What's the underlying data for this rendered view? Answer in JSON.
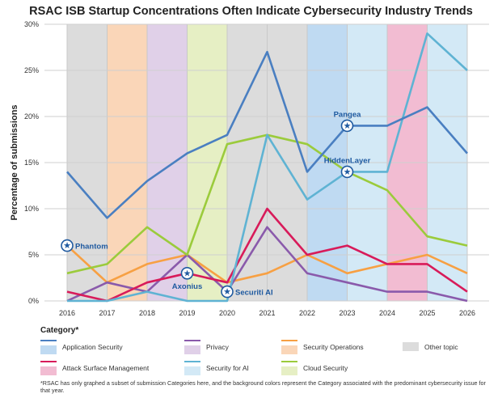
{
  "chart_data": {
    "type": "line",
    "title": "RSAC ISB Startup Concentrations Often Indicate Cybersecurity Industry Trends",
    "ylabel": "Percentage of submissions",
    "xlabel": "",
    "x": [
      2016,
      2017,
      2018,
      2019,
      2020,
      2021,
      2022,
      2023,
      2024,
      2025,
      2026
    ],
    "x_tick_labels": [
      "2016",
      "2017",
      "2018",
      "2019",
      "2020",
      "2021",
      "2022",
      "2023",
      "2024",
      "2025",
      "2026"
    ],
    "ylim": [
      0,
      30
    ],
    "y_ticks": [
      0,
      5,
      10,
      15,
      20,
      25,
      30
    ],
    "y_tick_labels": [
      "0%",
      "5%",
      "10%",
      "15%",
      "20%",
      "25%",
      "30%"
    ],
    "grid": true,
    "series": [
      {
        "name": "Application Security",
        "color": "#4a7fc1",
        "values": [
          14,
          9,
          13,
          16,
          18,
          27,
          14,
          19,
          19,
          21,
          16
        ]
      },
      {
        "name": "Security for AI",
        "color": "#5fb3d3",
        "values": [
          0,
          0,
          1,
          0,
          0,
          18,
          11,
          14,
          14,
          29,
          25
        ]
      },
      {
        "name": "Cloud Security",
        "color": "#9bcb3c",
        "values": [
          3,
          4,
          8,
          5,
          17,
          18,
          17,
          14,
          12,
          7,
          6
        ]
      },
      {
        "name": "Attack Surface Management",
        "color": "#d81b5a",
        "values": [
          1,
          0,
          2,
          3,
          2,
          10,
          5,
          6,
          4,
          4,
          1
        ]
      },
      {
        "name": "Privacy",
        "color": "#8a5aab",
        "values": [
          0,
          2,
          1,
          5,
          1,
          8,
          3,
          2,
          1,
          1,
          0
        ]
      },
      {
        "name": "Security Operations",
        "color": "#f7a043",
        "values": [
          6,
          2,
          4,
          5,
          2,
          3,
          5,
          3,
          4,
          5,
          3
        ]
      }
    ],
    "background_bands": [
      {
        "from": 2016,
        "to": 2017,
        "category": "Other topic"
      },
      {
        "from": 2017,
        "to": 2018,
        "category": "Security Operations"
      },
      {
        "from": 2018,
        "to": 2019,
        "category": "Privacy"
      },
      {
        "from": 2019,
        "to": 2020,
        "category": "Cloud Security"
      },
      {
        "from": 2020,
        "to": 2022,
        "category": "Other topic"
      },
      {
        "from": 2022,
        "to": 2023,
        "category": "Application Security"
      },
      {
        "from": 2023,
        "to": 2024,
        "category": "Security for AI"
      },
      {
        "from": 2024,
        "to": 2025,
        "category": "Attack Surface Management"
      },
      {
        "from": 2025,
        "to": 2026,
        "category": "Security for AI"
      }
    ],
    "annotations": [
      {
        "text": "Phantom",
        "x": 2016,
        "y": 6,
        "side": "right"
      },
      {
        "text": "Axonius",
        "x": 2019,
        "y": 3,
        "side": "below"
      },
      {
        "text": "Securiti AI",
        "x": 2020,
        "y": 1,
        "side": "right"
      },
      {
        "text": "Pangea",
        "x": 2023,
        "y": 19,
        "side": "above"
      },
      {
        "text": "HiddenLayer",
        "x": 2023,
        "y": 14,
        "side": "above"
      }
    ],
    "legend": {
      "title": "Category*",
      "placement": "bottom",
      "items": [
        {
          "label": "Application Security",
          "line": "#4a7fc1",
          "bg": "#bfdaf2"
        },
        {
          "label": "Privacy",
          "line": "#8a5aab",
          "bg": "#e0d0e8"
        },
        {
          "label": "Security Operations",
          "line": "#f7a043",
          "bg": "#fad6b8"
        },
        {
          "label": "Other topic",
          "line": null,
          "bg": "#dcdcdc"
        },
        {
          "label": "Attack Surface Management",
          "line": "#d81b5a",
          "bg": "#f2bcd2"
        },
        {
          "label": "Security for AI",
          "line": "#5fb3d3",
          "bg": "#d3e9f6"
        },
        {
          "label": "Cloud Security",
          "line": "#9bcb3c",
          "bg": "#e6efc4"
        }
      ]
    },
    "footnote": "*RSAC has only graphed a subset of submission Categories here, and the background colors represent the Category associated with the predominant cybersecurity issue for that year."
  }
}
